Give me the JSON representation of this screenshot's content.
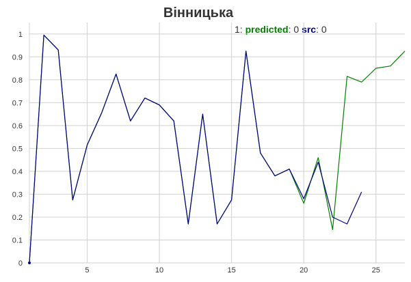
{
  "chart_data": {
    "type": "line",
    "title": "Вінницька",
    "xlabel": "",
    "ylabel": "",
    "xlim": [
      1,
      27
    ],
    "ylim": [
      0,
      1.05
    ],
    "grid": true,
    "x_ticks": [
      "5",
      "10",
      "15",
      "20",
      "25"
    ],
    "y_ticks": [
      "0",
      "0.1",
      "0.2",
      "0.3",
      "0.4",
      "0.5",
      "0.6",
      "0.7",
      "0.8",
      "0.9",
      "1"
    ],
    "legend": {
      "prefix": "1:",
      "predicted_label": "predicted",
      "predicted_value": "0",
      "src_label": "src",
      "src_value": "0",
      "sep": ":"
    },
    "series": [
      {
        "name": "predicted",
        "color": "#008000",
        "x": [
          1,
          2,
          3,
          4,
          5,
          6,
          7,
          8,
          9,
          10,
          11,
          12,
          13,
          14,
          15,
          16,
          17,
          18,
          19,
          20,
          21,
          22,
          23,
          24,
          25,
          26,
          27
        ],
        "values": [
          0,
          0.995,
          0.93,
          0.275,
          0.515,
          0.655,
          0.825,
          0.62,
          0.72,
          0.69,
          0.62,
          0.17,
          0.65,
          0.17,
          0.275,
          0.925,
          0.48,
          0.38,
          0.41,
          0.26,
          0.46,
          0.145,
          0.815,
          0.79,
          0.85,
          0.86,
          0.925
        ]
      },
      {
        "name": "src",
        "color": "#000080",
        "x": [
          1,
          2,
          3,
          4,
          5,
          6,
          7,
          8,
          9,
          10,
          11,
          12,
          13,
          14,
          15,
          16,
          17,
          18,
          19,
          20,
          21,
          22,
          23,
          24
        ],
        "values": [
          0,
          0.995,
          0.93,
          0.275,
          0.515,
          0.655,
          0.825,
          0.62,
          0.72,
          0.69,
          0.62,
          0.17,
          0.65,
          0.17,
          0.275,
          0.925,
          0.48,
          0.38,
          0.41,
          0.28,
          0.44,
          0.2,
          0.17,
          0.31
        ]
      }
    ]
  }
}
